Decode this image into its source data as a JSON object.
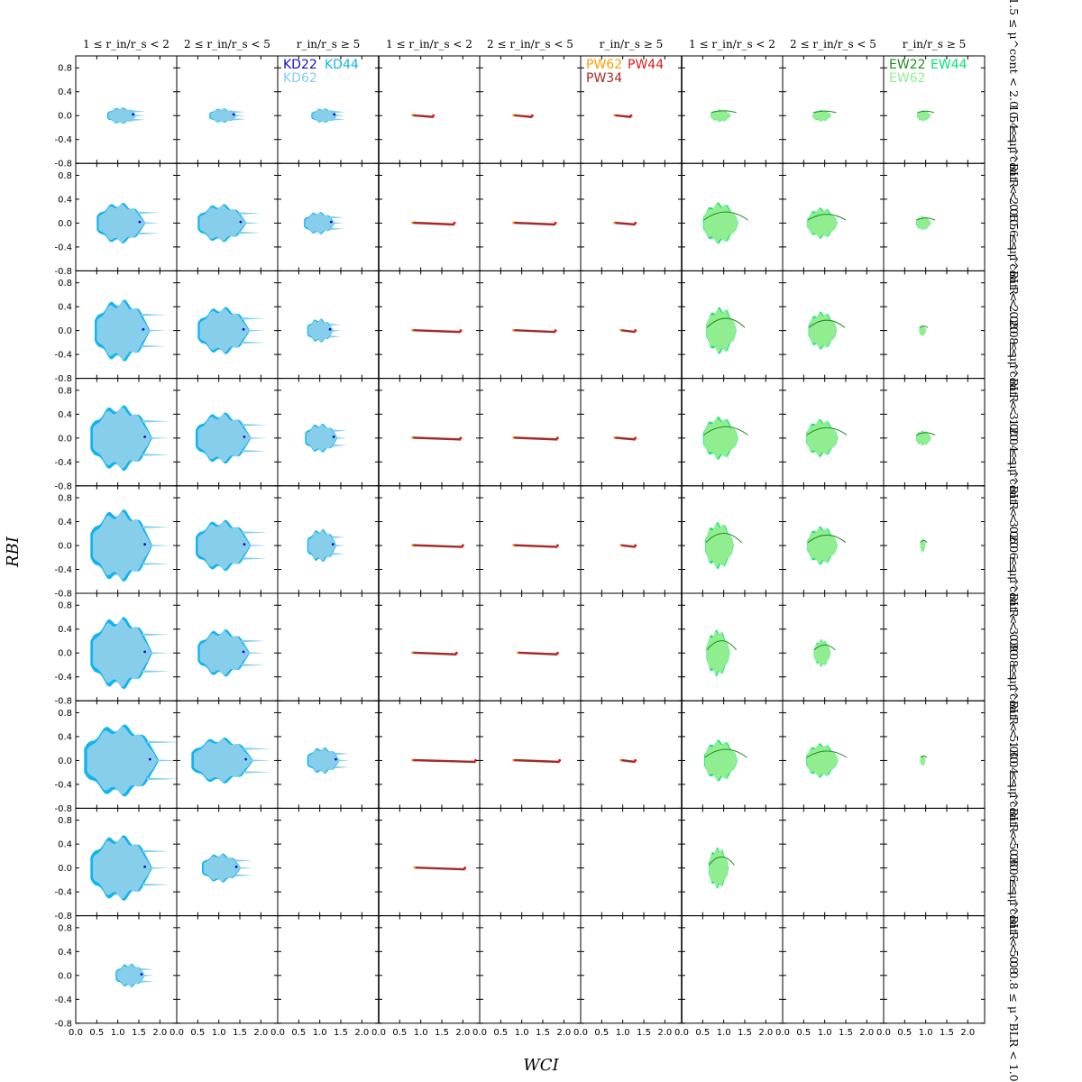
{
  "chart_data": {
    "type": "scatter",
    "xlabel": "WCI",
    "ylabel": "RBI",
    "xlim": [
      0.0,
      2.4
    ],
    "ylim": [
      -0.8,
      1.0
    ],
    "x_ticks": [
      "0.0",
      "0.5",
      "1.0",
      "1.5",
      "2.0"
    ],
    "y_ticks": [
      "0.8",
      "0.4",
      "0.0",
      "-0.4",
      "-0.8"
    ],
    "y_tick_values": [
      0.8,
      0.4,
      0.0,
      -0.4,
      -0.8
    ],
    "x_tick_values": [
      0.0,
      0.5,
      1.0,
      1.5,
      2.0
    ],
    "column_titles": [
      "1 ≤ r_in/r_s < 2",
      "2 ≤ r_in/r_s < 5",
      "r_in/r_s ≥ 5",
      "1 ≤ r_in/r_s < 2",
      "2 ≤ r_in/r_s < 5",
      "r_in/r_s ≥ 5",
      "1 ≤ r_in/r_s < 2",
      "2 ≤ r_in/r_s < 5",
      "r_in/r_s ≥ 5"
    ],
    "row_titles": [
      "1.5 ≤ μ^cont < 2.0 0.4 ≤ μ^BLR < 0.6",
      "1.5 ≤ μ^cont < 2.0 0.6 ≤ μ^BLR < 0.8",
      "1.5 ≤ μ^cont < 2.0 0.8 ≤ μ^BLR < 1.0",
      "2.0 ≤ μ^cont < 3.0 0.4 ≤ μ^BLR < 0.6",
      "2.0 ≤ μ^cont < 3.0 0.6 ≤ μ^BLR < 0.8",
      "2.0 ≤ μ^cont < 3.0 0.8 ≤ μ^BLR < 1.0",
      "3.0 ≤ μ^cont < 5.0 0.4 ≤ μ^BLR < 0.6",
      "3.0 ≤ μ^cont < 5.0 0.6 ≤ μ^BLR < 0.8",
      "3.0 ≤ μ^cont < 5.0 0.8 ≤ μ^BLR < 1.0"
    ],
    "legends": [
      {
        "column": 2,
        "entries": [
          {
            "name": "KD22",
            "color": "#1010c8"
          },
          {
            "name": "KD44",
            "color": "#10b4ee"
          },
          {
            "name": "KD62",
            "color": "#87ceeb"
          }
        ]
      },
      {
        "column": 5,
        "entries": [
          {
            "name": "PW62",
            "color": "#ff9e00"
          },
          {
            "name": "PW44",
            "color": "#e31a1c"
          },
          {
            "name": "PW34",
            "color": "#a52a2a"
          }
        ]
      },
      {
        "column": 8,
        "entries": [
          {
            "name": "EW22",
            "color": "#228b22"
          },
          {
            "name": "EW44",
            "color": "#00e676"
          },
          {
            "name": "EW62",
            "color": "#90ee90"
          }
        ]
      }
    ],
    "panels": [
      [
        {
          "shape": "blob",
          "cx": 1.2,
          "w": 0.9,
          "h": 0.25
        },
        {
          "shape": "blob",
          "cx": 1.2,
          "w": 0.85,
          "h": 0.22
        },
        {
          "shape": "blob",
          "cx": 1.2,
          "w": 0.8,
          "h": 0.22
        },
        {
          "shape": "streak",
          "x0": 0.8,
          "x1": 1.3
        },
        {
          "shape": "streak",
          "x0": 0.8,
          "x1": 1.25
        },
        {
          "shape": "streak",
          "x0": 0.8,
          "x1": 1.2
        },
        {
          "shape": "green",
          "cx": 1.0,
          "w": 0.6,
          "h": 0.18
        },
        {
          "shape": "green",
          "cx": 1.0,
          "w": 0.55,
          "h": 0.17
        },
        {
          "shape": "green",
          "cx": 1.0,
          "w": 0.4,
          "h": 0.16
        }
      ],
      [
        {
          "shape": "blob",
          "cx": 1.25,
          "w": 1.5,
          "h": 0.62
        },
        {
          "shape": "blob",
          "cx": 1.25,
          "w": 1.5,
          "h": 0.58
        },
        {
          "shape": "blob",
          "cx": 1.1,
          "w": 0.95,
          "h": 0.34
        },
        {
          "shape": "streak",
          "x0": 0.8,
          "x1": 1.8
        },
        {
          "shape": "streak",
          "x0": 0.8,
          "x1": 1.8
        },
        {
          "shape": "streak",
          "x0": 0.8,
          "x1": 1.3
        },
        {
          "shape": "green",
          "cx": 1.05,
          "w": 1.05,
          "h": 0.6
        },
        {
          "shape": "green",
          "cx": 1.05,
          "w": 0.9,
          "h": 0.45
        },
        {
          "shape": "green",
          "cx": 1.0,
          "w": 0.45,
          "h": 0.2
        }
      ],
      [
        {
          "shape": "blob",
          "cx": 1.3,
          "w": 1.7,
          "h": 0.94
        },
        {
          "shape": "blob",
          "cx": 1.3,
          "w": 1.6,
          "h": 0.72
        },
        {
          "shape": "blob",
          "cx": 1.1,
          "w": 0.8,
          "h": 0.36
        },
        {
          "shape": "streak",
          "x0": 0.8,
          "x1": 1.95
        },
        {
          "shape": "streak",
          "x0": 0.8,
          "x1": 1.8
        },
        {
          "shape": "streak",
          "x0": 0.95,
          "x1": 1.3
        },
        {
          "shape": "green",
          "cx": 1.05,
          "w": 0.9,
          "h": 0.68
        },
        {
          "shape": "green",
          "cx": 1.05,
          "w": 0.85,
          "h": 0.55
        },
        {
          "shape": "green",
          "cx": 0.95,
          "w": 0.2,
          "h": 0.16
        }
      ],
      [
        {
          "shape": "blob",
          "cx": 1.3,
          "w": 1.9,
          "h": 1.0
        },
        {
          "shape": "blob",
          "cx": 1.3,
          "w": 1.7,
          "h": 0.78
        },
        {
          "shape": "blob",
          "cx": 1.15,
          "w": 1.0,
          "h": 0.44
        },
        {
          "shape": "streak",
          "x0": 0.8,
          "x1": 1.95
        },
        {
          "shape": "streak",
          "x0": 0.8,
          "x1": 1.85
        },
        {
          "shape": "streak",
          "x0": 0.8,
          "x1": 1.3
        },
        {
          "shape": "green",
          "cx": 1.05,
          "w": 1.05,
          "h": 0.62
        },
        {
          "shape": "green",
          "cx": 1.05,
          "w": 0.95,
          "h": 0.55
        },
        {
          "shape": "green",
          "cx": 1.0,
          "w": 0.45,
          "h": 0.22
        }
      ],
      [
        {
          "shape": "blob",
          "cx": 1.3,
          "w": 1.9,
          "h": 1.1
        },
        {
          "shape": "blob",
          "cx": 1.3,
          "w": 1.7,
          "h": 0.78
        },
        {
          "shape": "blob",
          "cx": 1.15,
          "w": 0.9,
          "h": 0.5
        },
        {
          "shape": "streak",
          "x0": 0.8,
          "x1": 2.0
        },
        {
          "shape": "streak",
          "x0": 0.8,
          "x1": 1.85
        },
        {
          "shape": "streak",
          "x0": 0.95,
          "x1": 1.3
        },
        {
          "shape": "green",
          "cx": 1.0,
          "w": 0.85,
          "h": 0.68
        },
        {
          "shape": "green",
          "cx": 1.05,
          "w": 0.9,
          "h": 0.56
        },
        {
          "shape": "green",
          "cx": 0.95,
          "w": 0.15,
          "h": 0.2
        }
      ],
      [
        {
          "shape": "blob",
          "cx": 1.3,
          "w": 1.9,
          "h": 1.1
        },
        {
          "shape": "blob",
          "cx": 1.3,
          "w": 1.6,
          "h": 0.72
        },
        {
          "shape": "none"
        },
        {
          "shape": "streak",
          "x0": 0.8,
          "x1": 1.85
        },
        {
          "shape": "streak",
          "x0": 0.9,
          "x1": 1.85
        },
        {
          "shape": "none"
        },
        {
          "shape": "green",
          "cx": 0.95,
          "w": 0.7,
          "h": 0.68
        },
        {
          "shape": "green",
          "cx": 1.0,
          "w": 0.5,
          "h": 0.4
        },
        {
          "shape": "none"
        }
      ],
      [
        {
          "shape": "blob",
          "cx": 1.35,
          "w": 2.3,
          "h": 1.1
        },
        {
          "shape": "blob",
          "cx": 1.3,
          "w": 1.9,
          "h": 0.7
        },
        {
          "shape": "blob",
          "cx": 1.2,
          "w": 1.0,
          "h": 0.4
        },
        {
          "shape": "streak",
          "x0": 0.8,
          "x1": 2.3
        },
        {
          "shape": "streak",
          "x0": 0.8,
          "x1": 1.9
        },
        {
          "shape": "streak",
          "x0": 0.95,
          "x1": 1.3
        },
        {
          "shape": "green",
          "cx": 1.05,
          "w": 1.0,
          "h": 0.6
        },
        {
          "shape": "green",
          "cx": 1.05,
          "w": 0.95,
          "h": 0.5
        },
        {
          "shape": "green",
          "cx": 0.95,
          "w": 0.15,
          "h": 0.16
        }
      ],
      [
        {
          "shape": "blob",
          "cx": 1.3,
          "w": 1.9,
          "h": 1.0
        },
        {
          "shape": "blob",
          "cx": 1.2,
          "w": 1.2,
          "h": 0.44
        },
        {
          "shape": "none"
        },
        {
          "shape": "streak",
          "x0": 0.85,
          "x1": 2.05
        },
        {
          "shape": "none"
        },
        {
          "shape": "none"
        },
        {
          "shape": "green",
          "cx": 0.95,
          "w": 0.6,
          "h": 0.6
        },
        {
          "shape": "none"
        },
        {
          "shape": "none"
        }
      ],
      [
        {
          "shape": "blob",
          "cx": 1.4,
          "w": 0.9,
          "h": 0.36
        },
        {
          "shape": "none"
        },
        {
          "shape": "none"
        },
        {
          "shape": "none"
        },
        {
          "shape": "none"
        },
        {
          "shape": "none"
        },
        {
          "shape": "none"
        },
        {
          "shape": "none"
        },
        {
          "shape": "none"
        }
      ]
    ]
  }
}
